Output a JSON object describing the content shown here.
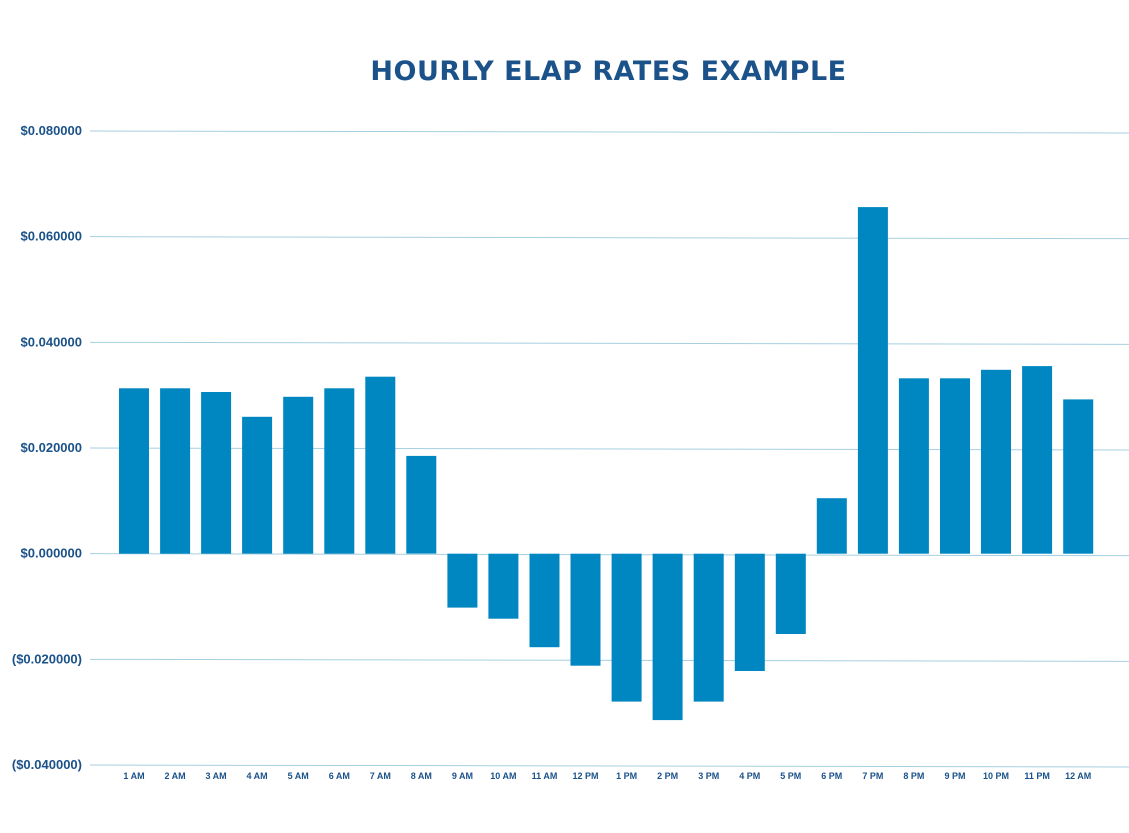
{
  "chart_data": {
    "type": "bar",
    "title": "HOURLY ELAP RATES EXAMPLE",
    "xlabel": "",
    "ylabel": "",
    "ylim": [
      -0.04,
      0.08
    ],
    "yticks": [
      0.08,
      0.06,
      0.04,
      0.02,
      0.0,
      -0.02,
      -0.04
    ],
    "ytick_labels": [
      "$0.080000",
      "$0.060000",
      "$0.040000",
      "$0.020000",
      "$0.000000",
      "($0.020000)",
      "($0.040000)"
    ],
    "grid": true,
    "categories": [
      "1 AM",
      "2 AM",
      "3 AM",
      "4 AM",
      "5 AM",
      "6 AM",
      "7 AM",
      "8 AM",
      "9 AM",
      "10 AM",
      "11 AM",
      "12 PM",
      "1 PM",
      "2 PM",
      "3 PM",
      "4 PM",
      "5 PM",
      "6 PM",
      "7 PM",
      "8 PM",
      "9 PM",
      "10 PM",
      "11 PM",
      "12 AM"
    ],
    "values": [
      0.0313,
      0.0313,
      0.0306,
      0.0259,
      0.0297,
      0.0313,
      0.0335,
      0.0185,
      -0.0102,
      -0.0123,
      -0.0177,
      -0.0212,
      -0.028,
      -0.0315,
      -0.028,
      -0.0222,
      -0.0152,
      0.0105,
      0.0656,
      0.0332,
      0.0332,
      0.0348,
      0.0355,
      0.0292
    ],
    "colors": {
      "bar": "#0086c0",
      "grid": "#a6cfe0",
      "text": "#1b5289"
    }
  }
}
